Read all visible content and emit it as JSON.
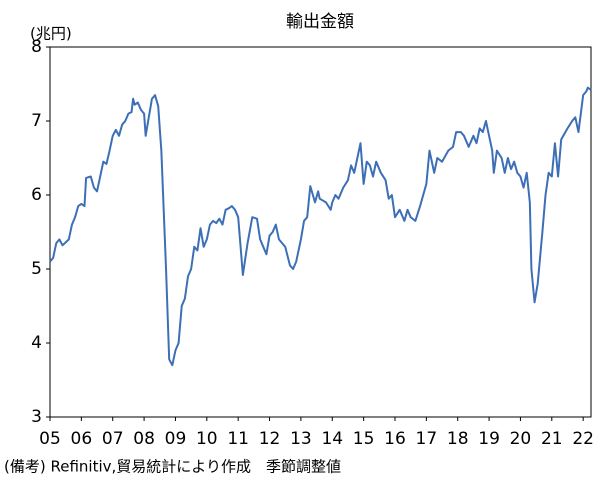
{
  "chart_data": {
    "type": "line",
    "title": "輸出金額",
    "y_label": "(兆円)",
    "note": "(備考) Refinitiv,貿易統計により作成　季節調整値",
    "xlim": [
      5,
      22.25
    ],
    "xticks": [
      {
        "value": 5,
        "label": "05"
      },
      {
        "value": 6,
        "label": "06"
      },
      {
        "value": 7,
        "label": "07"
      },
      {
        "value": 8,
        "label": "08"
      },
      {
        "value": 9,
        "label": "09"
      },
      10,
      11,
      12,
      13,
      14,
      15,
      16,
      17,
      18,
      19,
      20,
      21,
      22
    ],
    "ylim": [
      3,
      8
    ],
    "yticks": [
      3,
      4,
      5,
      6,
      7,
      8
    ],
    "grid": false,
    "series": [
      {
        "name": "輸出金額",
        "color": "#3d6fb6",
        "x": [
          5.0,
          5.1,
          5.2,
          5.3,
          5.4,
          5.6,
          5.7,
          5.8,
          5.9,
          6.0,
          6.1,
          6.15,
          6.3,
          6.4,
          6.5,
          6.6,
          6.7,
          6.8,
          6.9,
          7.0,
          7.1,
          7.2,
          7.3,
          7.4,
          7.5,
          7.6,
          7.65,
          7.7,
          7.8,
          7.9,
          8.0,
          8.05,
          8.15,
          8.25,
          8.35,
          8.45,
          8.55,
          8.7,
          8.8,
          8.9,
          9.0,
          9.1,
          9.2,
          9.3,
          9.4,
          9.5,
          9.6,
          9.7,
          9.8,
          9.9,
          10.0,
          10.1,
          10.2,
          10.3,
          10.4,
          10.5,
          10.6,
          10.7,
          10.8,
          10.9,
          11.0,
          11.15,
          11.3,
          11.45,
          11.6,
          11.7,
          11.8,
          11.9,
          12.0,
          12.1,
          12.2,
          12.3,
          12.4,
          12.5,
          12.65,
          12.75,
          12.85,
          13.0,
          13.1,
          13.2,
          13.3,
          13.45,
          13.55,
          13.6,
          13.8,
          13.95,
          14.0,
          14.1,
          14.2,
          14.35,
          14.5,
          14.6,
          14.7,
          14.8,
          14.9,
          15.0,
          15.1,
          15.2,
          15.3,
          15.4,
          15.55,
          15.7,
          15.8,
          15.9,
          16.0,
          16.15,
          16.3,
          16.4,
          16.5,
          16.65,
          16.8,
          16.9,
          17.0,
          17.1,
          17.25,
          17.35,
          17.5,
          17.7,
          17.85,
          17.95,
          18.1,
          18.2,
          18.35,
          18.5,
          18.6,
          18.7,
          18.8,
          18.9,
          19.0,
          19.1,
          19.15,
          19.25,
          19.4,
          19.5,
          19.6,
          19.7,
          19.8,
          19.9,
          20.0,
          20.1,
          20.2,
          20.3,
          20.35,
          20.45,
          20.55,
          20.7,
          20.8,
          20.9,
          21.0,
          21.1,
          21.2,
          21.3,
          21.5,
          21.65,
          21.75,
          21.85,
          22.0,
          22.1,
          22.15,
          22.25
        ],
        "values": [
          5.1,
          5.15,
          5.35,
          5.4,
          5.32,
          5.4,
          5.6,
          5.7,
          5.85,
          5.88,
          5.85,
          6.23,
          6.25,
          6.1,
          6.05,
          6.25,
          6.45,
          6.42,
          6.6,
          6.8,
          6.88,
          6.8,
          6.95,
          7.0,
          7.1,
          7.12,
          7.3,
          7.22,
          7.25,
          7.15,
          7.1,
          6.8,
          7.05,
          7.3,
          7.35,
          7.2,
          6.6,
          5.0,
          3.78,
          3.7,
          3.9,
          4.0,
          4.5,
          4.6,
          4.9,
          5.0,
          5.3,
          5.25,
          5.55,
          5.3,
          5.4,
          5.6,
          5.65,
          5.62,
          5.68,
          5.6,
          5.8,
          5.82,
          5.85,
          5.8,
          5.7,
          4.92,
          5.35,
          5.7,
          5.68,
          5.4,
          5.3,
          5.2,
          5.45,
          5.5,
          5.6,
          5.4,
          5.35,
          5.3,
          5.05,
          5.0,
          5.1,
          5.4,
          5.65,
          5.7,
          6.12,
          5.9,
          6.05,
          5.95,
          5.9,
          5.8,
          5.9,
          6.0,
          5.95,
          6.1,
          6.2,
          6.4,
          6.3,
          6.5,
          6.7,
          6.15,
          6.45,
          6.4,
          6.25,
          6.45,
          6.3,
          6.2,
          5.95,
          6.0,
          5.7,
          5.8,
          5.65,
          5.8,
          5.7,
          5.65,
          5.85,
          6.0,
          6.15,
          6.6,
          6.3,
          6.5,
          6.45,
          6.6,
          6.65,
          6.85,
          6.85,
          6.8,
          6.65,
          6.8,
          6.7,
          6.9,
          6.85,
          7.0,
          6.8,
          6.6,
          6.3,
          6.6,
          6.5,
          6.3,
          6.5,
          6.35,
          6.45,
          6.3,
          6.25,
          6.1,
          6.3,
          5.9,
          5.0,
          4.55,
          4.8,
          5.5,
          6.0,
          6.3,
          6.25,
          6.7,
          6.25,
          6.75,
          6.9,
          7.0,
          7.05,
          6.85,
          7.35,
          7.4,
          7.45,
          7.42
        ]
      }
    ]
  }
}
